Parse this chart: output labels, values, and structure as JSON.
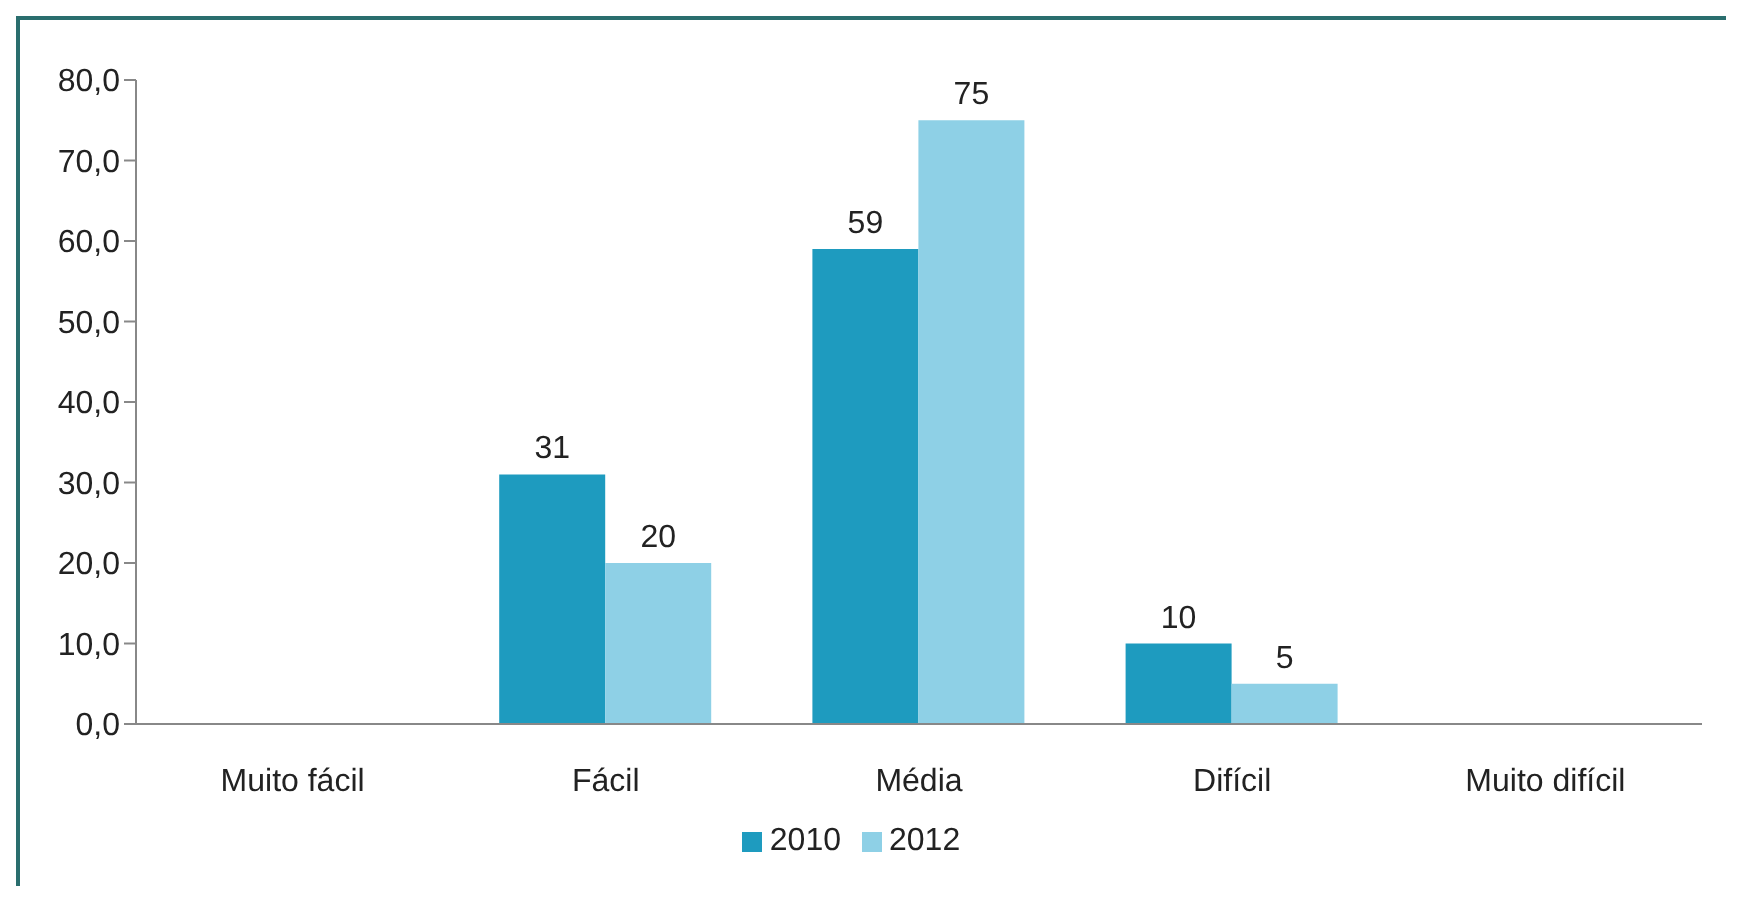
{
  "chart_data": {
    "type": "bar",
    "categories": [
      "Muito fácil",
      "Fácil",
      "Média",
      "Difícil",
      "Muito difícil"
    ],
    "series": [
      {
        "name": "2010",
        "color": "#1e9bbf",
        "values": [
          null,
          31,
          59,
          10,
          null
        ]
      },
      {
        "name": "2012",
        "color": "#8ed0e6",
        "values": [
          null,
          20,
          75,
          5,
          null
        ]
      }
    ],
    "ylim": [
      0,
      80
    ],
    "yticks": [
      {
        "value": 0,
        "label": "0,0"
      },
      {
        "value": 10,
        "label": "10,0"
      },
      {
        "value": 20,
        "label": "20,0"
      },
      {
        "value": 30,
        "label": "30,0"
      },
      {
        "value": 40,
        "label": "40,0"
      },
      {
        "value": 50,
        "label": "50,0"
      },
      {
        "value": 60,
        "label": "60,0"
      },
      {
        "value": 70,
        "label": "70,0"
      },
      {
        "value": 80,
        "label": "80,0"
      }
    ],
    "data_labels": true,
    "grid": false,
    "legend": "bottom"
  }
}
